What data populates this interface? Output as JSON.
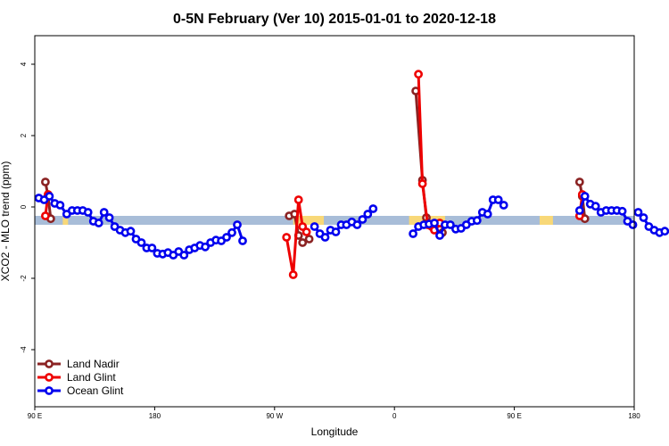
{
  "chart_data": {
    "type": "line",
    "title": "0-5N February (Ver 10)   2015-01-01 to 2020-12-18",
    "xlabel": "Longitude",
    "ylabel": "XCO2 - MLO trend (ppm)",
    "x_ticks": [
      {
        "value": 90,
        "label": "90 E"
      },
      {
        "value": 180,
        "label": "180"
      },
      {
        "value": 270,
        "label": "90 W"
      },
      {
        "value": 360,
        "label": "0"
      },
      {
        "value": 450,
        "label": "90 E"
      },
      {
        "value": 540,
        "label": "180"
      }
    ],
    "y_ticks": [
      -4,
      -2,
      0,
      2,
      4
    ],
    "xlim": [
      90,
      540
    ],
    "ylim": [
      -5.6,
      4.8
    ],
    "grid": false,
    "legend_position": "bottom-left",
    "band": {
      "y_range": [
        -0.5,
        -0.25
      ],
      "blue_color": "#a8bdd8",
      "yellow_color": "#f8d878",
      "yellow_segments": [
        [
          111,
          115
        ],
        [
          284,
          307
        ],
        [
          371,
          398
        ],
        [
          469,
          479
        ]
      ]
    },
    "series": [
      {
        "name": "Land Nadir",
        "color": "#8b2323",
        "segments": [
          [
            [
              98,
              0.7
            ],
            [
              100,
              0.3
            ],
            [
              102,
              -0.33
            ]
          ],
          [
            [
              281,
              -0.25
            ],
            [
              285,
              -0.2
            ],
            [
              288,
              -0.8
            ],
            [
              291,
              -1.0
            ],
            [
              296,
              -0.9
            ]
          ],
          [
            [
              376,
              3.25
            ],
            [
              381,
              0.75
            ],
            [
              384,
              -0.3
            ],
            [
              387,
              -0.5
            ],
            [
              390,
              -0.55
            ],
            [
              394,
              -0.63
            ],
            [
              396,
              -0.72
            ]
          ],
          [
            [
              499,
              0.7
            ],
            [
              501,
              0.3
            ],
            [
              503,
              -0.33
            ]
          ]
        ]
      },
      {
        "name": "Land Glint",
        "color": "#ee0000",
        "segments": [
          [
            [
              98,
              -0.25
            ],
            [
              100,
              0.35
            ]
          ],
          [
            [
              279,
              -0.85
            ],
            [
              284,
              -1.9
            ],
            [
              288,
              0.2
            ],
            [
              291,
              -0.55
            ],
            [
              294,
              -0.7
            ]
          ],
          [
            [
              378,
              3.72
            ],
            [
              381,
              0.65
            ],
            [
              385,
              -0.5
            ],
            [
              388,
              -0.55
            ],
            [
              390,
              -0.65
            ],
            [
              394,
              -0.45
            ]
          ],
          [
            [
              499,
              -0.25
            ],
            [
              501,
              0.35
            ]
          ]
        ]
      },
      {
        "name": "Ocean Glint",
        "color": "#0000ee",
        "segments": [
          [
            [
              93,
              0.25
            ],
            [
              97,
              0.2
            ],
            [
              101,
              0.3
            ],
            [
              105,
              0.1
            ],
            [
              109,
              0.05
            ],
            [
              114,
              -0.2
            ],
            [
              118,
              -0.1
            ],
            [
              122,
              -0.1
            ],
            [
              126,
              -0.1
            ],
            [
              130,
              -0.15
            ],
            [
              134,
              -0.4
            ],
            [
              138,
              -0.45
            ],
            [
              142,
              -0.15
            ],
            [
              146,
              -0.3
            ],
            [
              150,
              -0.55
            ],
            [
              154,
              -0.65
            ],
            [
              158,
              -0.72
            ],
            [
              162,
              -0.68
            ],
            [
              166,
              -0.9
            ],
            [
              170,
              -1.0
            ],
            [
              174,
              -1.15
            ],
            [
              178,
              -1.15
            ],
            [
              182,
              -1.3
            ],
            [
              186,
              -1.32
            ],
            [
              190,
              -1.28
            ],
            [
              194,
              -1.35
            ],
            [
              198,
              -1.25
            ],
            [
              202,
              -1.35
            ],
            [
              206,
              -1.2
            ],
            [
              210,
              -1.15
            ],
            [
              214,
              -1.08
            ],
            [
              218,
              -1.12
            ],
            [
              222,
              -1.0
            ],
            [
              226,
              -0.93
            ],
            [
              230,
              -0.95
            ],
            [
              234,
              -0.85
            ],
            [
              238,
              -0.72
            ],
            [
              242,
              -0.5
            ],
            [
              246,
              -0.95
            ]
          ],
          [
            [
              374,
              -0.75
            ],
            [
              378,
              -0.55
            ],
            [
              382,
              -0.5
            ],
            [
              386,
              -0.48
            ],
            [
              390,
              -0.45
            ],
            [
              394,
              -0.8
            ],
            [
              398,
              -0.5
            ],
            [
              402,
              -0.5
            ],
            [
              406,
              -0.62
            ],
            [
              410,
              -0.6
            ],
            [
              414,
              -0.5
            ],
            [
              418,
              -0.4
            ],
            [
              422,
              -0.38
            ],
            [
              426,
              -0.15
            ],
            [
              430,
              -0.2
            ],
            [
              434,
              0.2
            ],
            [
              438,
              0.2
            ],
            [
              442,
              0.05
            ]
          ],
          [
            [
              300,
              -0.55
            ],
            [
              304,
              -0.75
            ],
            [
              308,
              -0.85
            ],
            [
              312,
              -0.65
            ],
            [
              316,
              -0.7
            ],
            [
              320,
              -0.5
            ],
            [
              324,
              -0.5
            ],
            [
              328,
              -0.42
            ],
            [
              332,
              -0.5
            ],
            [
              336,
              -0.35
            ],
            [
              340,
              -0.2
            ],
            [
              344,
              -0.05
            ]
          ],
          [
            [
              499,
              -0.1
            ],
            [
              503,
              0.3
            ],
            [
              507,
              0.08
            ],
            [
              511,
              0.02
            ],
            [
              515,
              -0.15
            ],
            [
              519,
              -0.1
            ],
            [
              523,
              -0.1
            ],
            [
              527,
              -0.1
            ],
            [
              531,
              -0.12
            ],
            [
              535,
              -0.4
            ],
            [
              539,
              -0.5
            ]
          ],
          [
            [
              543,
              -0.15
            ],
            [
              547,
              -0.3
            ],
            [
              551,
              -0.55
            ],
            [
              555,
              -0.65
            ],
            [
              559,
              -0.72
            ],
            [
              563,
              -0.68
            ]
          ]
        ]
      }
    ]
  }
}
